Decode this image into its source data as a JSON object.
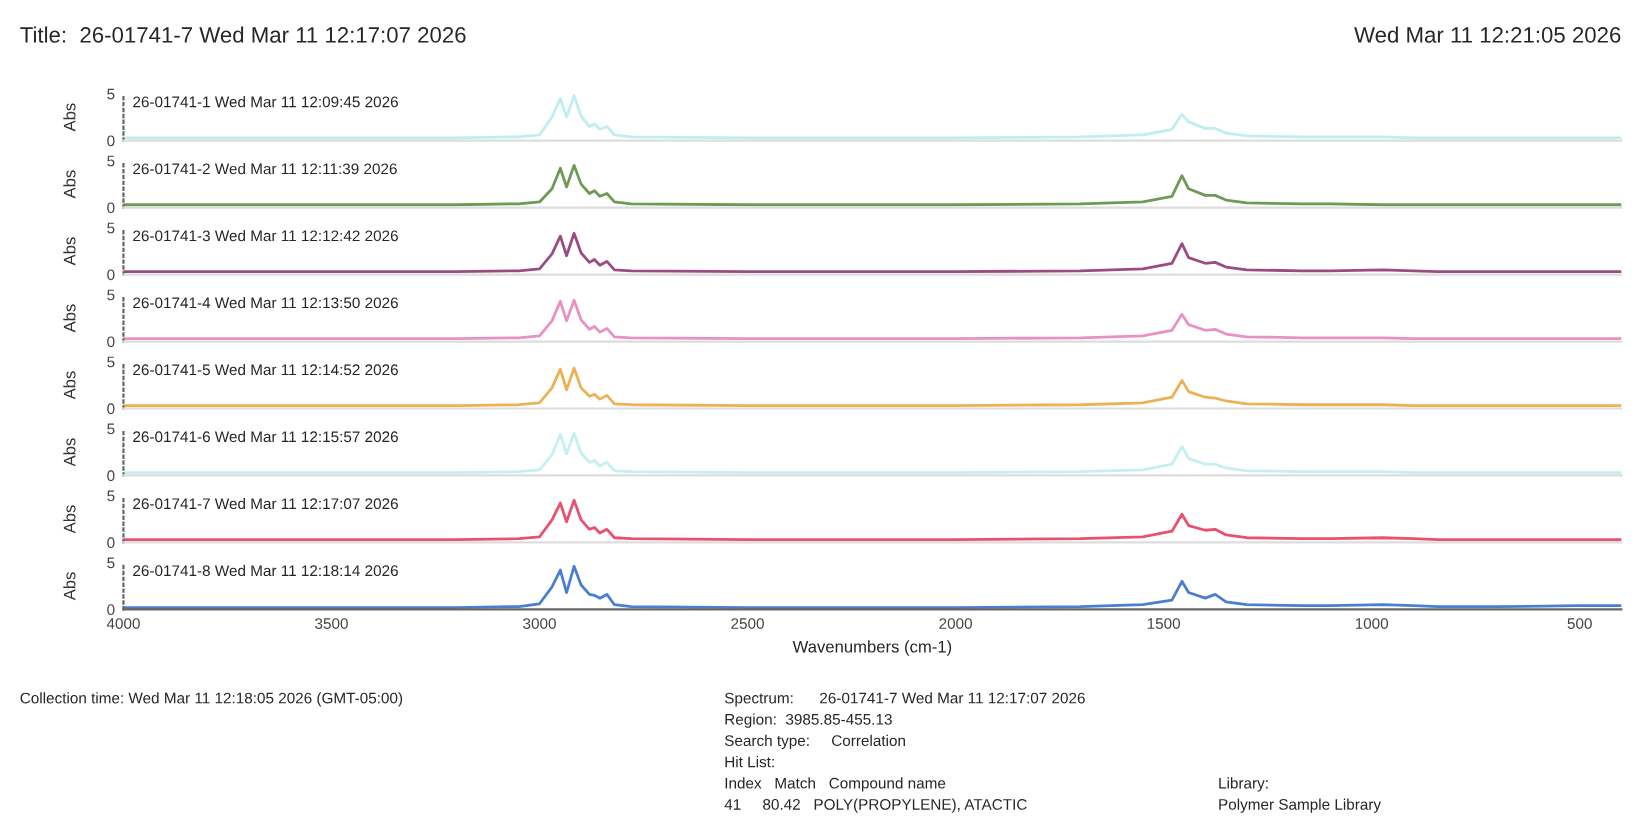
{
  "chart_data": [
    {
      "type": "line",
      "title": "Title:  26-01741-7 Wed Mar 11 12:17:07 2026",
      "subtitle": "Wed Mar 11 12:21:05 2026",
      "ylabel": "Abs",
      "tick_labels": "y",
      "xlim": [
        4000,
        400
      ],
      "xticks": [
        4000,
        3500,
        3000,
        2500,
        2000,
        1500,
        1000,
        500
      ],
      "ylim": [
        0,
        5
      ],
      "yticks": [
        0,
        5
      ],
      "annotations": [
        "26-01741-1 Wed Mar 11 12:09:45 2026"
      ],
      "x": [
        4000,
        3600,
        3200,
        3050,
        3000,
        2970,
        2950,
        2935,
        2917,
        2900,
        2880,
        2868,
        2855,
        2838,
        2820,
        2780,
        2500,
        2000,
        1700,
        1550,
        1480,
        1456,
        1440,
        1400,
        1376,
        1350,
        1300,
        1167,
        1100,
        973,
        900,
        840,
        700,
        500,
        400
      ],
      "series": [
        {
          "color": "#bfeeee",
          "values": [
            0.3,
            0.3,
            0.3,
            0.4,
            0.6,
            2.5,
            4.5,
            2.5,
            4.8,
            2.6,
            1.5,
            1.8,
            1.2,
            1.5,
            0.6,
            0.4,
            0.3,
            0.3,
            0.4,
            0.6,
            1.2,
            2.8,
            2.0,
            1.3,
            1.3,
            0.8,
            0.5,
            0.4,
            0.4,
            0.4,
            0.3,
            0.3,
            0.3,
            0.3,
            0.3
          ]
        }
      ]
    },
    {
      "type": "line",
      "ylabel": "Abs",
      "tick_labels": "y",
      "xlim": [
        4000,
        400
      ],
      "xticks": [
        4000,
        3500,
        3000,
        2500,
        2000,
        1500,
        1000,
        500
      ],
      "ylim": [
        0,
        5
      ],
      "yticks": [
        0,
        5
      ],
      "annotations": [
        "26-01741-2 Wed Mar 11 12:11:39 2026"
      ],
      "x": [
        4000,
        3600,
        3200,
        3050,
        3000,
        2970,
        2950,
        2935,
        2917,
        2900,
        2880,
        2868,
        2855,
        2838,
        2820,
        2780,
        2500,
        2000,
        1700,
        1550,
        1480,
        1456,
        1440,
        1400,
        1376,
        1350,
        1300,
        1167,
        1100,
        973,
        900,
        840,
        700,
        500,
        400
      ],
      "series": [
        {
          "color": "#6e9a55",
          "values": [
            0.3,
            0.3,
            0.3,
            0.4,
            0.6,
            2.0,
            4.2,
            2.2,
            4.5,
            2.5,
            1.5,
            1.8,
            1.2,
            1.5,
            0.6,
            0.4,
            0.3,
            0.3,
            0.4,
            0.6,
            1.2,
            3.4,
            2.0,
            1.3,
            1.3,
            0.8,
            0.5,
            0.4,
            0.4,
            0.3,
            0.3,
            0.3,
            0.3,
            0.3,
            0.3
          ]
        }
      ]
    },
    {
      "type": "line",
      "ylabel": "Abs",
      "tick_labels": "y",
      "xlim": [
        4000,
        400
      ],
      "xticks": [
        4000,
        3500,
        3000,
        2500,
        2000,
        1500,
        1000,
        500
      ],
      "ylim": [
        0,
        5
      ],
      "yticks": [
        0,
        5
      ],
      "annotations": [
        "26-01741-3 Wed Mar 11 12:12:42 2026"
      ],
      "x": [
        4000,
        3600,
        3200,
        3050,
        3000,
        2970,
        2950,
        2935,
        2917,
        2900,
        2880,
        2868,
        2855,
        2838,
        2820,
        2780,
        2500,
        2000,
        1700,
        1550,
        1480,
        1456,
        1440,
        1400,
        1376,
        1350,
        1300,
        1167,
        1100,
        973,
        900,
        840,
        700,
        500,
        400
      ],
      "series": [
        {
          "color": "#9a4c82",
          "values": [
            0.3,
            0.3,
            0.3,
            0.4,
            0.6,
            2.2,
            4.1,
            2.0,
            4.4,
            2.3,
            1.3,
            1.6,
            1.0,
            1.4,
            0.5,
            0.4,
            0.3,
            0.3,
            0.4,
            0.6,
            1.2,
            3.3,
            1.8,
            1.2,
            1.3,
            0.8,
            0.5,
            0.4,
            0.4,
            0.5,
            0.4,
            0.3,
            0.3,
            0.3,
            0.3
          ]
        }
      ]
    },
    {
      "type": "line",
      "ylabel": "Abs",
      "tick_labels": "y",
      "xlim": [
        4000,
        400
      ],
      "xticks": [
        4000,
        3500,
        3000,
        2500,
        2000,
        1500,
        1000,
        500
      ],
      "ylim": [
        0,
        5
      ],
      "yticks": [
        0,
        5
      ],
      "annotations": [
        "26-01741-4 Wed Mar 11 12:13:50 2026"
      ],
      "x": [
        4000,
        3600,
        3200,
        3050,
        3000,
        2970,
        2950,
        2935,
        2917,
        2900,
        2880,
        2868,
        2855,
        2838,
        2820,
        2780,
        2500,
        2000,
        1700,
        1550,
        1480,
        1456,
        1440,
        1400,
        1376,
        1350,
        1300,
        1167,
        1100,
        973,
        900,
        840,
        700,
        500,
        400
      ],
      "series": [
        {
          "color": "#e991c3",
          "values": [
            0.3,
            0.3,
            0.3,
            0.4,
            0.6,
            2.2,
            4.3,
            2.2,
            4.4,
            2.3,
            1.3,
            1.6,
            1.0,
            1.4,
            0.5,
            0.4,
            0.3,
            0.3,
            0.4,
            0.6,
            1.2,
            2.9,
            1.8,
            1.2,
            1.3,
            0.8,
            0.5,
            0.4,
            0.4,
            0.4,
            0.3,
            0.3,
            0.3,
            0.3,
            0.3
          ]
        }
      ]
    },
    {
      "type": "line",
      "ylabel": "Abs",
      "tick_labels": "y",
      "xlim": [
        4000,
        400
      ],
      "xticks": [
        4000,
        3500,
        3000,
        2500,
        2000,
        1500,
        1000,
        500
      ],
      "ylim": [
        0,
        5
      ],
      "yticks": [
        0,
        5
      ],
      "annotations": [
        "26-01741-5 Wed Mar 11 12:14:52 2026"
      ],
      "x": [
        4000,
        3600,
        3200,
        3050,
        3000,
        2970,
        2950,
        2935,
        2917,
        2900,
        2880,
        2868,
        2855,
        2838,
        2820,
        2780,
        2500,
        2000,
        1700,
        1550,
        1480,
        1456,
        1440,
        1400,
        1376,
        1350,
        1300,
        1167,
        1100,
        973,
        900,
        840,
        700,
        500,
        400
      ],
      "series": [
        {
          "color": "#eab254",
          "values": [
            0.3,
            0.3,
            0.3,
            0.4,
            0.6,
            2.2,
            4.2,
            2.0,
            4.3,
            2.2,
            1.3,
            1.5,
            1.0,
            1.4,
            0.5,
            0.4,
            0.3,
            0.3,
            0.4,
            0.6,
            1.2,
            3.0,
            1.8,
            1.2,
            1.1,
            0.8,
            0.5,
            0.4,
            0.4,
            0.4,
            0.3,
            0.3,
            0.3,
            0.3,
            0.3
          ]
        }
      ]
    },
    {
      "type": "line",
      "ylabel": "Abs",
      "tick_labels": "y",
      "xlim": [
        4000,
        400
      ],
      "xticks": [
        4000,
        3500,
        3000,
        2500,
        2000,
        1500,
        1000,
        500
      ],
      "ylim": [
        0,
        5
      ],
      "yticks": [
        0,
        5
      ],
      "annotations": [
        "26-01741-6 Wed Mar 11 12:15:57 2026"
      ],
      "x": [
        4000,
        3600,
        3200,
        3050,
        3000,
        2970,
        2950,
        2935,
        2917,
        2900,
        2880,
        2868,
        2855,
        2838,
        2820,
        2780,
        2500,
        2000,
        1700,
        1550,
        1480,
        1456,
        1440,
        1400,
        1376,
        1350,
        1300,
        1167,
        1100,
        973,
        900,
        840,
        700,
        500,
        400
      ],
      "series": [
        {
          "color": "#c4f0f0",
          "values": [
            0.3,
            0.3,
            0.3,
            0.4,
            0.6,
            2.2,
            4.4,
            2.3,
            4.5,
            2.4,
            1.4,
            1.6,
            1.0,
            1.4,
            0.5,
            0.4,
            0.3,
            0.3,
            0.4,
            0.6,
            1.2,
            3.1,
            1.8,
            1.2,
            1.2,
            0.8,
            0.5,
            0.4,
            0.4,
            0.4,
            0.3,
            0.3,
            0.3,
            0.3,
            0.3
          ]
        }
      ]
    },
    {
      "type": "line",
      "ylabel": "Abs",
      "tick_labels": "y",
      "xlim": [
        4000,
        400
      ],
      "xticks": [
        4000,
        3500,
        3000,
        2500,
        2000,
        1500,
        1000,
        500
      ],
      "ylim": [
        0,
        5
      ],
      "yticks": [
        0,
        5
      ],
      "annotations": [
        "26-01741-7 Wed Mar 11 12:17:07 2026"
      ],
      "x": [
        4000,
        3600,
        3200,
        3050,
        3000,
        2970,
        2950,
        2935,
        2917,
        2900,
        2880,
        2868,
        2855,
        2838,
        2820,
        2780,
        2500,
        2000,
        1700,
        1550,
        1480,
        1456,
        1440,
        1400,
        1376,
        1350,
        1300,
        1167,
        1100,
        973,
        900,
        840,
        700,
        500,
        400
      ],
      "series": [
        {
          "color": "#e9516f",
          "values": [
            0.3,
            0.3,
            0.3,
            0.4,
            0.6,
            2.4,
            4.2,
            2.2,
            4.5,
            2.4,
            1.4,
            1.6,
            1.0,
            1.4,
            0.5,
            0.4,
            0.3,
            0.3,
            0.4,
            0.6,
            1.2,
            3.0,
            1.8,
            1.3,
            1.4,
            0.8,
            0.5,
            0.4,
            0.4,
            0.5,
            0.4,
            0.3,
            0.3,
            0.3,
            0.3
          ]
        }
      ]
    },
    {
      "type": "line",
      "ylabel": "Abs",
      "xlabel": "Wavenumbers (cm-1)",
      "xlim": [
        4000,
        400
      ],
      "xticks": [
        4000,
        3500,
        3000,
        2500,
        2000,
        1500,
        1000,
        500
      ],
      "ylim": [
        0,
        5
      ],
      "yticks": [
        0,
        5
      ],
      "annotations": [
        "26-01741-8 Wed Mar 11 12:18:14 2026",
        "Collection time: Wed Mar 11 12:18:05 2026 (GMT-05:00)",
        "Spectrum:      26-01741-7 Wed Mar 11 12:17:07 2026",
        "Region:  3985.85-455.13",
        "Search type:     Correlation",
        "Hit List:",
        "Index   Match   Compound name",
        "41     80.42   POLY(PROPYLENE), ATACTIC",
        "Library:",
        "Polymer Sample Library"
      ],
      "x": [
        4000,
        3600,
        3200,
        3050,
        3000,
        2970,
        2950,
        2935,
        2917,
        2900,
        2880,
        2868,
        2855,
        2838,
        2820,
        2780,
        2500,
        2000,
        1700,
        1550,
        1480,
        1456,
        1440,
        1400,
        1376,
        1350,
        1300,
        1167,
        1100,
        973,
        900,
        840,
        700,
        500,
        400
      ],
      "series": [
        {
          "color": "#4a7fd0",
          "values": [
            0.2,
            0.2,
            0.2,
            0.3,
            0.6,
            2.4,
            4.2,
            1.8,
            4.6,
            2.6,
            1.6,
            1.5,
            1.2,
            1.6,
            0.5,
            0.3,
            0.2,
            0.2,
            0.3,
            0.5,
            1.0,
            3.0,
            1.8,
            1.2,
            1.6,
            0.8,
            0.5,
            0.4,
            0.4,
            0.5,
            0.4,
            0.3,
            0.3,
            0.4,
            0.4
          ]
        }
      ]
    }
  ]
}
